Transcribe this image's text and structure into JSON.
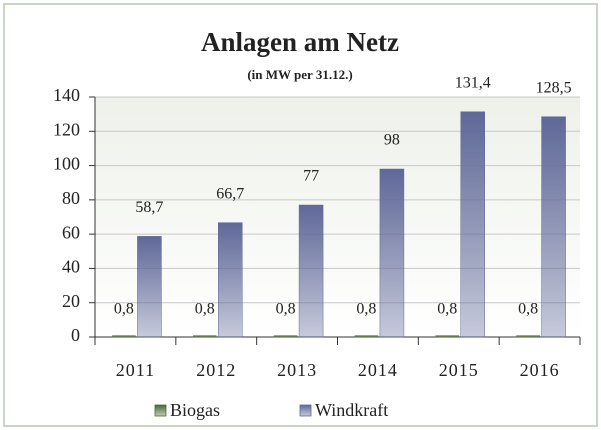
{
  "chart_data": {
    "type": "bar",
    "title": "Anlagen am Netz",
    "subtitle": "(in MW per 31.12.)",
    "categories": [
      "2011",
      "2012",
      "2013",
      "2014",
      "2015",
      "2016"
    ],
    "series": [
      {
        "name": "Biogas",
        "color": "#4a6b35",
        "values": [
          0.8,
          0.8,
          0.8,
          0.8,
          0.8,
          0.8
        ],
        "value_labels": [
          "0,8",
          "0,8",
          "0,8",
          "0,8",
          "0,8",
          "0,8"
        ]
      },
      {
        "name": "Windkraft",
        "color": "#5f6899",
        "values": [
          58.7,
          66.7,
          77,
          98,
          131.4,
          128.5
        ],
        "value_labels": [
          "58,7",
          "66,7",
          "77",
          "98",
          "131,4",
          "128,5"
        ]
      }
    ],
    "ylim": [
      0,
      140
    ],
    "yticks": [
      0,
      20,
      40,
      60,
      80,
      100,
      120,
      140
    ],
    "grid": true,
    "legend": "bottom"
  }
}
